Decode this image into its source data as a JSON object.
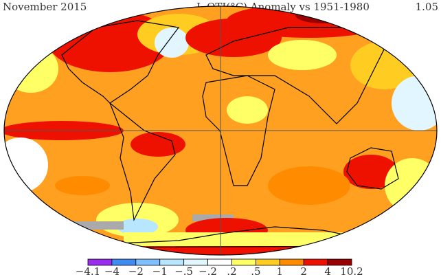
{
  "header": {
    "left": "November 2015",
    "center": "L-OTI(°C) Anomaly vs 1951-1980",
    "right": "1.05"
  },
  "legend": {
    "labels": [
      "−4.1",
      "−4",
      "−2",
      "−1",
      "−.5",
      "−.2",
      ".2",
      ".5",
      "1",
      "2",
      "4",
      "10.2"
    ],
    "colors": [
      "#9a2cf0",
      "#3f8cf2",
      "#80c0ff",
      "#b8e6ff",
      "#e2f6ff",
      "#ffffff",
      "#ffff66",
      "#ffcc22",
      "#ff8c00",
      "#ee1100",
      "#990000"
    ]
  }
}
